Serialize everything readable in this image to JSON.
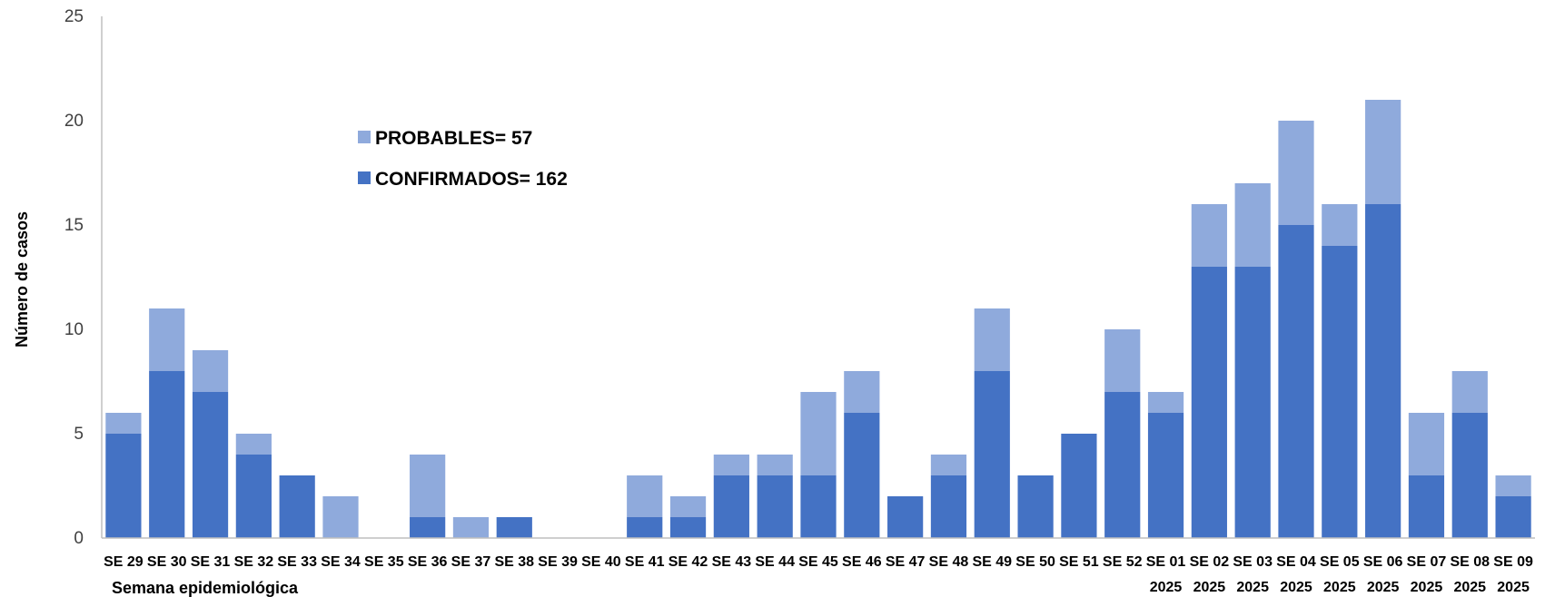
{
  "chart_data": {
    "type": "bar",
    "stacked": true,
    "ylabel": "Número de casos",
    "xlabel": "Semana epidemiológica",
    "ylim": [
      0,
      25
    ],
    "yticks": [
      0,
      5,
      10,
      15,
      20,
      25
    ],
    "grid": false,
    "legend_position": "top-left",
    "categories": [
      "SE 29",
      "SE 30",
      "SE 31",
      "SE 32",
      "SE 33",
      "SE 34",
      "SE 35",
      "SE 36",
      "SE 37",
      "SE 38",
      "SE 39",
      "SE 40",
      "SE 41",
      "SE 42",
      "SE 43",
      "SE 44",
      "SE 45",
      "SE 46",
      "SE 47",
      "SE 48",
      "SE 49",
      "SE 50",
      "SE 51",
      "SE 52",
      "SE 01",
      "SE 02",
      "SE 03",
      "SE 04",
      "SE 05",
      "SE 06",
      "SE 07",
      "SE 08",
      "SE 09"
    ],
    "category_sublabels": [
      "",
      "",
      "",
      "",
      "",
      "",
      "",
      "",
      "",
      "",
      "",
      "",
      "",
      "",
      "",
      "",
      "",
      "",
      "",
      "",
      "",
      "",
      "",
      "",
      "2025",
      "2025",
      "2025",
      "2025",
      "2025",
      "2025",
      "2025",
      "2025",
      "2025"
    ],
    "series": [
      {
        "name": "CONFIRMADOS= 162",
        "color": "#4472C4",
        "values": [
          5,
          8,
          7,
          4,
          3,
          0,
          0,
          1,
          0,
          1,
          0,
          0,
          1,
          1,
          3,
          3,
          3,
          6,
          2,
          3,
          8,
          3,
          5,
          7,
          6,
          13,
          13,
          15,
          14,
          16,
          3,
          6,
          2
        ]
      },
      {
        "name": "PROBABLES= 57",
        "color": "#8FAADC",
        "values": [
          1,
          3,
          2,
          1,
          0,
          2,
          0,
          3,
          1,
          0,
          0,
          0,
          2,
          1,
          1,
          1,
          4,
          2,
          0,
          1,
          3,
          0,
          0,
          3,
          1,
          3,
          4,
          5,
          2,
          5,
          3,
          2,
          1
        ]
      }
    ],
    "legend_order": [
      "PROBABLES= 57",
      "CONFIRMADOS= 162"
    ]
  }
}
